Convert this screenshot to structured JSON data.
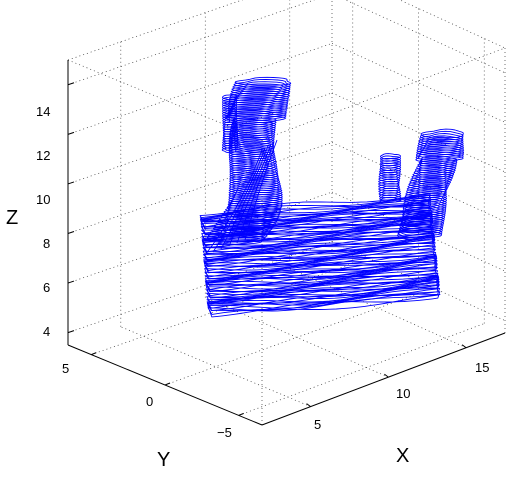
{
  "chart_data": {
    "type": "3d-wireframe",
    "title": "",
    "xlabel": "X",
    "ylabel": "Y",
    "zlabel": "Z",
    "xlim": [
      2,
      18
    ],
    "ylim": [
      -6,
      6
    ],
    "zlim": [
      3.5,
      15
    ],
    "xticks": [
      "5",
      "10",
      "15"
    ],
    "yticks": [
      "5",
      "0",
      "−5"
    ],
    "zticks": [
      "4",
      "6",
      "8",
      "10",
      "12",
      "14"
    ],
    "grid": true,
    "line_color": "#0000ff"
  }
}
